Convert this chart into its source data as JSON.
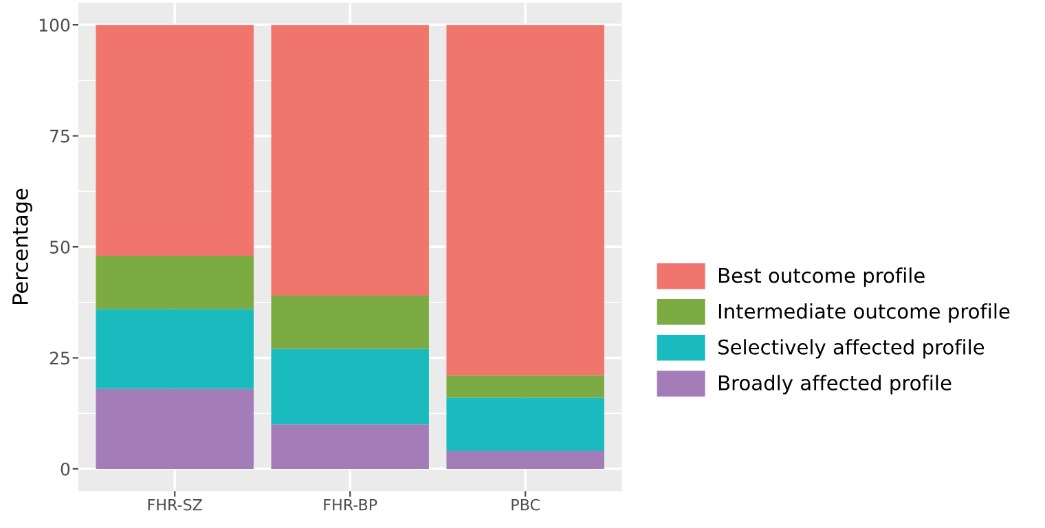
{
  "chart_data": {
    "type": "bar",
    "stacked": true,
    "ylabel": "Percentage",
    "categories": [
      "FHR-SZ",
      "FHR-BP",
      "PBC"
    ],
    "series": [
      {
        "name": "Broadly affected profile",
        "color": "#a47db8",
        "values": [
          18,
          10,
          4
        ]
      },
      {
        "name": "Selectively affected profile",
        "color": "#19bbbf",
        "values": [
          18,
          17,
          12
        ]
      },
      {
        "name": "Intermediate outcome profile",
        "color": "#7cab43",
        "values": [
          12,
          12,
          5
        ]
      },
      {
        "name": "Best outcome profile",
        "color": "#f0756d",
        "values": [
          52,
          61,
          79
        ]
      }
    ],
    "ylim": [
      -5,
      105
    ],
    "yticks": [
      0,
      25,
      50,
      75,
      100
    ],
    "grid": true,
    "legend": "right"
  }
}
